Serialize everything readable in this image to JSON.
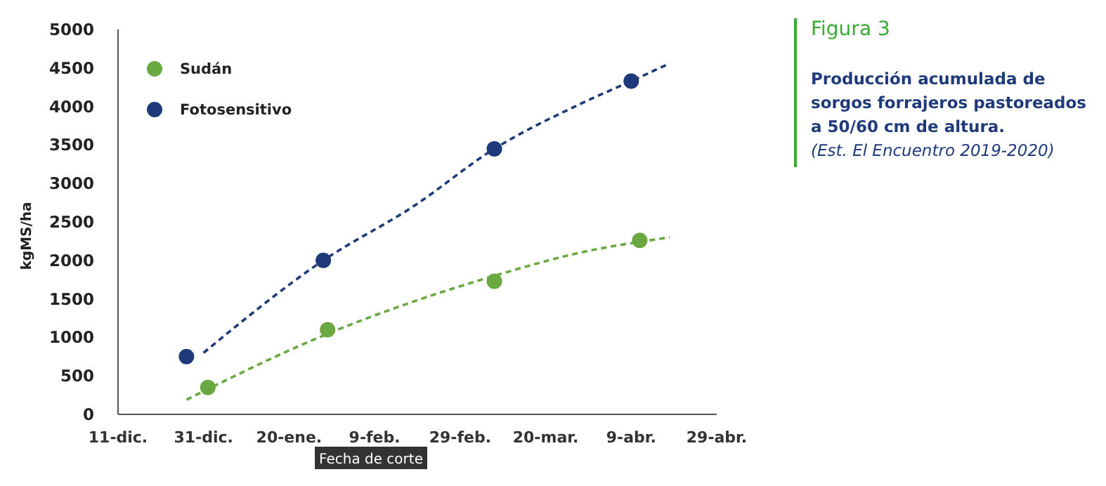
{
  "chart_data": {
    "type": "scatter",
    "title": "Figura 3",
    "subtitle": "Producción acumulada de sorgos forrajeros pastoreados a 50/60 cm de altura.",
    "annotations": [
      "(Est. El Encuentro 2019-2020)"
    ],
    "xlabel": "Fecha de corte",
    "ylabel": "kgMS/ha",
    "xlim": [
      "2019-12-11",
      "2020-04-29"
    ],
    "xticks": [
      {
        "value": "2019-12-11",
        "label": "11-dic."
      },
      {
        "value": "2019-12-31",
        "label": "31-dic."
      },
      {
        "value": "2020-01-20",
        "label": "20-ene."
      },
      {
        "value": "2020-02-09",
        "label": "9-feb."
      },
      {
        "value": "2020-02-29",
        "label": "29-feb."
      },
      {
        "value": "2020-03-20",
        "label": "20-mar."
      },
      {
        "value": "2020-04-09",
        "label": "9-abr."
      },
      {
        "value": "2020-04-29",
        "label": "29-abr."
      }
    ],
    "ylim": [
      0,
      5000
    ],
    "yticks": [
      0,
      500,
      1000,
      1500,
      2000,
      2500,
      3000,
      3500,
      4000,
      4500,
      5000
    ],
    "grid": false,
    "legend": "top left",
    "marker": "circle",
    "series": [
      {
        "name": "Sudán",
        "color": "#6aa842",
        "x": [
          "2020-01-01",
          "2020-01-29",
          "2020-03-08",
          "2020-04-11"
        ],
        "values": [
          350,
          1100,
          1730,
          2260
        ]
      },
      {
        "name": "Fotosensitivo",
        "color": "#1f3a7a",
        "x": [
          "2019-12-27",
          "2020-01-28",
          "2020-03-08",
          "2020-04-09"
        ],
        "values": [
          750,
          2000,
          3450,
          4330
        ]
      },
      {
        "type": "line",
        "color": "#6aa842",
        "marker": "none",
        "line_style": "dashed",
        "x": [
          "2019-12-27",
          "2020-01-27",
          "2020-03-08",
          "2020-03-28",
          "2020-04-18"
        ],
        "values": [
          190,
          1000,
          1800,
          2100,
          2300
        ]
      },
      {
        "type": "line",
        "color": "#1f3a7a",
        "marker": "none",
        "line_style": "dashed",
        "x": [
          "2019-12-31",
          "2020-01-28",
          "2020-02-18",
          "2020-03-08",
          "2020-03-28",
          "2020-04-09",
          "2020-04-18"
        ],
        "values": [
          800,
          2000,
          2700,
          3450,
          4030,
          4330,
          4560
        ]
      }
    ]
  }
}
